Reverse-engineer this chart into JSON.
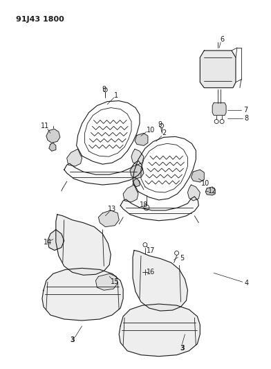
{
  "title": "91J43 1800",
  "bg": "#ffffff",
  "lc": "#1a1a1a",
  "fig_w": 3.92,
  "fig_h": 5.33,
  "dpi": 100
}
